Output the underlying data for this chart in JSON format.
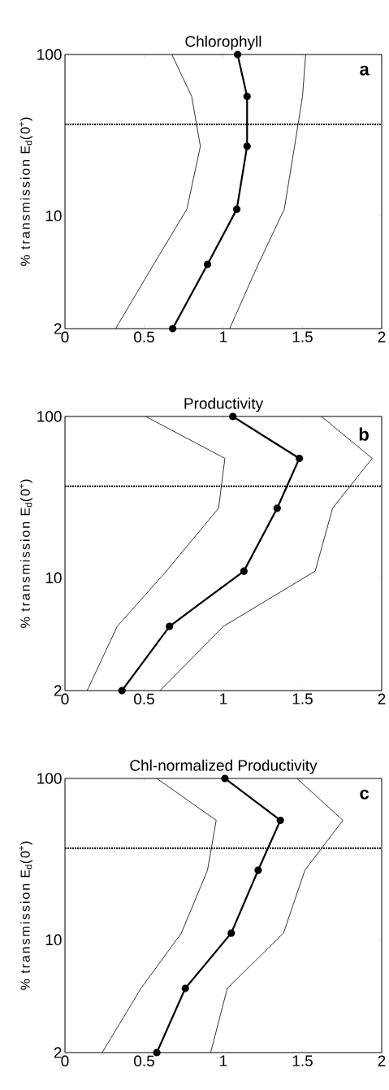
{
  "chart_data": [
    {
      "type": "line",
      "title": "Chlorophyll",
      "ylabel": "% transmission E$_{d}$(0$^{+}$)",
      "annotations": [
        "a"
      ],
      "log": "y",
      "xlim": [
        0,
        2
      ],
      "xticks": [
        0,
        0.5,
        1,
        1.5,
        2
      ],
      "ylim": [
        2,
        100
      ],
      "yticks": [
        2,
        10,
        100
      ],
      "line_style": "solid",
      "ref_lines": [
        {
          "axis": "y",
          "value": 37,
          "color": "#000000",
          "line_style": "dotted"
        }
      ],
      "series": [
        {
          "color": "#000000",
          "marker": "circle",
          "x": [
            1.09,
            1.15,
            1.15,
            1.085,
            0.9,
            0.68
          ],
          "values": [
            100,
            55,
            27,
            11,
            5,
            2
          ]
        },
        {
          "color": "#000000",
          "marker": "none",
          "x": [
            0.675,
            0.8,
            0.855,
            0.77,
            0.56,
            0.32
          ],
          "values": [
            100,
            55,
            27,
            11,
            5,
            2
          ]
        },
        {
          "color": "#000000",
          "marker": "none",
          "x": [
            1.52,
            1.5,
            1.45,
            1.385,
            1.22,
            1.04
          ],
          "values": [
            100,
            55,
            27,
            11,
            5,
            2
          ]
        }
      ]
    },
    {
      "type": "line",
      "title": "Productivity",
      "ylabel": "% transmission E$_{d}$(0$^{+}$)",
      "annotations": [
        "b"
      ],
      "log": "y",
      "xlim": [
        0,
        2
      ],
      "xticks": [
        0,
        0.5,
        1,
        1.5,
        2
      ],
      "ylim": [
        2,
        100
      ],
      "yticks": [
        2,
        10,
        100
      ],
      "line_style": "solid",
      "ref_lines": [
        {
          "axis": "y",
          "value": 37,
          "color": "#000000",
          "line_style": "dotted"
        }
      ],
      "series": [
        {
          "color": "#000000",
          "marker": "circle",
          "x": [
            1.06,
            1.48,
            1.34,
            1.13,
            0.66,
            0.36
          ],
          "values": [
            100,
            55,
            27,
            11,
            5,
            2
          ]
        },
        {
          "color": "#000000",
          "marker": "none",
          "x": [
            0.51,
            1.01,
            0.97,
            0.64,
            0.33,
            0.14
          ],
          "values": [
            100,
            55,
            27,
            11,
            5,
            2
          ]
        },
        {
          "color": "#000000",
          "marker": "none",
          "x": [
            1.62,
            1.94,
            1.69,
            1.58,
            1.0,
            0.6
          ],
          "values": [
            100,
            55,
            27,
            11,
            5,
            2
          ]
        }
      ]
    },
    {
      "type": "line",
      "title": "Chl-normalized Productivity",
      "ylabel": "% transmission E$_{d}$(0$^{+}$)",
      "annotations": [
        "c"
      ],
      "log": "y",
      "xlim": [
        0,
        2
      ],
      "xticks": [
        0,
        0.5,
        1,
        1.5,
        2
      ],
      "ylim": [
        2,
        100
      ],
      "yticks": [
        2,
        10,
        100
      ],
      "line_style": "solid",
      "ref_lines": [
        {
          "axis": "y",
          "value": 37,
          "color": "#000000",
          "line_style": "dotted"
        }
      ],
      "series": [
        {
          "color": "#000000",
          "marker": "circle",
          "x": [
            1.01,
            1.36,
            1.22,
            1.05,
            0.76,
            0.58
          ],
          "values": [
            100,
            55,
            27,
            11,
            5,
            2
          ]
        },
        {
          "color": "#000000",
          "marker": "none",
          "x": [
            0.58,
            0.955,
            0.9,
            0.735,
            0.48,
            0.235
          ],
          "values": [
            100,
            55,
            27,
            11,
            5,
            2
          ]
        },
        {
          "color": "#000000",
          "marker": "none",
          "x": [
            1.465,
            1.755,
            1.515,
            1.38,
            1.025,
            0.92
          ],
          "values": [
            100,
            55,
            27,
            11,
            5,
            2
          ]
        }
      ]
    }
  ]
}
